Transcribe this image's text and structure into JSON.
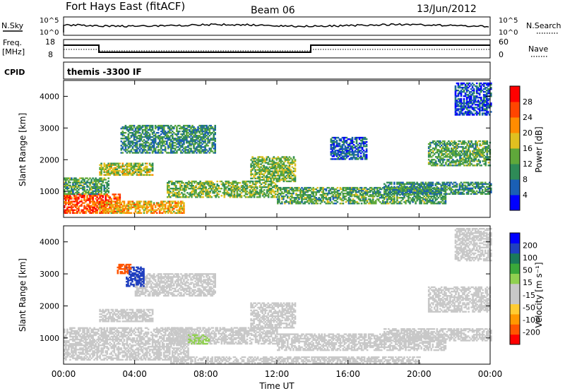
{
  "header": {
    "title": "Fort Hays East (fitACF)",
    "beam": "Beam 06",
    "date": "13/Jun/2012"
  },
  "status_panels": {
    "left_labels": {
      "nsky": "N.Sky",
      "freq_top": "Freq.",
      "freq_unit": "[MHz]",
      "cpid": "CPID"
    },
    "right_labels": {
      "nsearch": "N.Search",
      "nave": "Nave"
    },
    "left_ticks_noise": [
      "10^5",
      "10^0"
    ],
    "right_ticks_noise": [
      "10^5",
      "10^0"
    ],
    "left_ticks_freq": [
      "18",
      "8"
    ],
    "right_ticks_freq": [
      "60",
      "0"
    ],
    "cpid_text": "themis -3300 IF"
  },
  "colors": {
    "power_scale": [
      "#0000ff",
      "#1a5fb4",
      "#2e8b57",
      "#5fa83a",
      "#e0c020",
      "#ff8c00",
      "#ff4500",
      "#ff0000"
    ],
    "velocity_scale": [
      "#ff0000",
      "#ff5500",
      "#ff9900",
      "#ffcc33",
      "#c8c8c8",
      "#c8c8c8",
      "#90d050",
      "#3aa83a",
      "#1a7a5a",
      "#2040c0",
      "#0000ff"
    ]
  },
  "chart_data": [
    {
      "type": "heatmap",
      "name": "power",
      "ylabel": "Slant Range [km]",
      "yticks": [
        "1000",
        "2000",
        "3000",
        "4000"
      ],
      "ylim": [
        180,
        4500
      ],
      "xlim": [
        0,
        24
      ],
      "colorbar": {
        "label": "Power [dB]",
        "ticks": [
          "4",
          "8",
          "12",
          "16",
          "20",
          "24",
          "28"
        ],
        "range": [
          0,
          32
        ]
      },
      "regions": [
        {
          "t0": 0.0,
          "t1": 3.2,
          "r0": 300,
          "r1": 900,
          "level": 26
        },
        {
          "t0": 0.0,
          "t1": 2.5,
          "r0": 900,
          "r1": 1400,
          "level": 12
        },
        {
          "t0": 2.0,
          "t1": 6.8,
          "r0": 300,
          "r1": 700,
          "level": 20
        },
        {
          "t0": 2.0,
          "t1": 5.0,
          "r0": 1500,
          "r1": 1900,
          "level": 16
        },
        {
          "t0": 3.2,
          "t1": 8.5,
          "r0": 2200,
          "r1": 3100,
          "level": 10
        },
        {
          "t0": 5.8,
          "t1": 12.0,
          "r0": 800,
          "r1": 1300,
          "level": 14
        },
        {
          "t0": 10.5,
          "t1": 13.0,
          "r0": 1300,
          "r1": 2100,
          "level": 14
        },
        {
          "t0": 12.0,
          "t1": 21.5,
          "r0": 600,
          "r1": 1100,
          "level": 12
        },
        {
          "t0": 18.0,
          "t1": 24.0,
          "r0": 900,
          "r1": 1300,
          "level": 10
        },
        {
          "t0": 20.5,
          "t1": 24.0,
          "r0": 1800,
          "r1": 2600,
          "level": 12
        },
        {
          "t0": 15.0,
          "t1": 17.0,
          "r0": 2000,
          "r1": 2700,
          "level": 6
        },
        {
          "t0": 22.0,
          "t1": 24.0,
          "r0": 3400,
          "r1": 4400,
          "level": 5
        }
      ]
    },
    {
      "type": "heatmap",
      "name": "velocity",
      "ylabel": "Slant Range [km]",
      "yticks": [
        "1000",
        "2000",
        "3000",
        "4000"
      ],
      "ylim": [
        180,
        4500
      ],
      "xlim": [
        0,
        24
      ],
      "xlabel": "Time UT",
      "xticks": [
        "00:00",
        "04:00",
        "08:00",
        "12:00",
        "16:00",
        "20:00",
        "00:00"
      ],
      "colorbar": {
        "label": "Velocity [m s⁻¹]",
        "ticks": [
          "200",
          "100",
          "50",
          "15",
          "-15",
          "-50",
          "-100",
          "-200"
        ],
        "range": [
          -250,
          250
        ]
      },
      "regions": [
        {
          "t0": 0.0,
          "t1": 7.0,
          "r0": 300,
          "r1": 1300,
          "vel": 0
        },
        {
          "t0": 2.0,
          "t1": 5.0,
          "r0": 1500,
          "r1": 1900,
          "vel": 0
        },
        {
          "t0": 4.0,
          "t1": 8.5,
          "r0": 2300,
          "r1": 3000,
          "vel": 0
        },
        {
          "t0": 3.5,
          "t1": 4.5,
          "r0": 2600,
          "r1": 3200,
          "vel": 180
        },
        {
          "t0": 3.0,
          "t1": 3.8,
          "r0": 3000,
          "r1": 3300,
          "vel": -180
        },
        {
          "t0": 5.8,
          "t1": 12.0,
          "r0": 800,
          "r1": 1300,
          "vel": 0
        },
        {
          "t0": 7.0,
          "t1": 8.2,
          "r0": 800,
          "r1": 1100,
          "vel": 30
        },
        {
          "t0": 10.5,
          "t1": 13.0,
          "r0": 1300,
          "r1": 2100,
          "vel": 0
        },
        {
          "t0": 12.0,
          "t1": 21.5,
          "r0": 600,
          "r1": 1100,
          "vel": 0
        },
        {
          "t0": 18.0,
          "t1": 24.0,
          "r0": 900,
          "r1": 1300,
          "vel": 0
        },
        {
          "t0": 20.5,
          "t1": 24.0,
          "r0": 1800,
          "r1": 2600,
          "vel": 0
        },
        {
          "t0": 6.0,
          "t1": 20.0,
          "r0": 200,
          "r1": 400,
          "vel": -40
        },
        {
          "t0": 22.0,
          "t1": 24.0,
          "r0": 3400,
          "r1": 4400,
          "vel": 0
        }
      ]
    }
  ]
}
